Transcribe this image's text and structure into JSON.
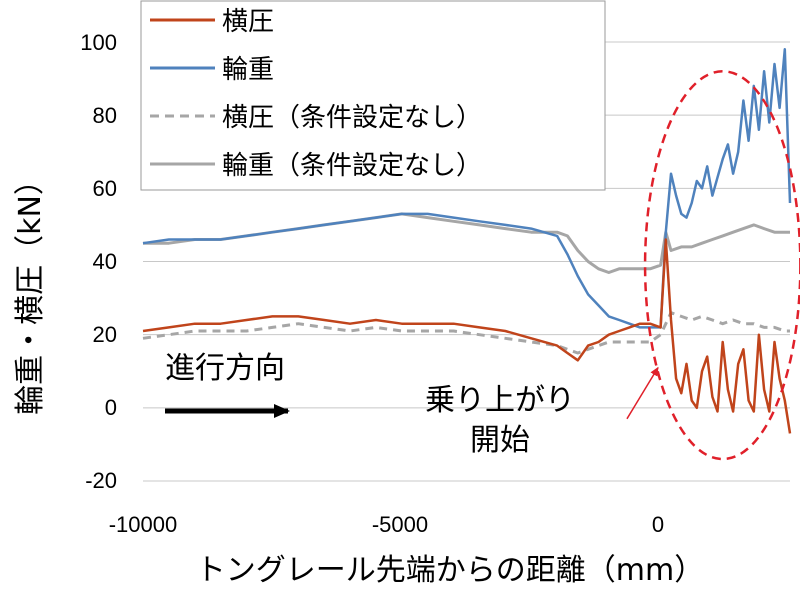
{
  "chart_data": {
    "type": "line",
    "title": "",
    "xlabel": "トングレール先端からの距離（mm）",
    "ylabel": "輪重・横圧（kN）",
    "xlim": [
      -10000,
      2500
    ],
    "ylim": [
      -20,
      100
    ],
    "x_ticks": [
      "-10000",
      "-5000",
      "0"
    ],
    "y_ticks": [
      "-20",
      "0",
      "20",
      "40",
      "60",
      "80",
      "100"
    ],
    "grid": "horizontal",
    "legend_position": "top-left",
    "series": [
      {
        "name": "横圧",
        "color": "#c0441b",
        "style": "solid",
        "x": [
          -10000,
          -9500,
          -9000,
          -8500,
          -8000,
          -7500,
          -7000,
          -6500,
          -6000,
          -5500,
          -5000,
          -4500,
          -4000,
          -3500,
          -3000,
          -2500,
          -2000,
          -1800,
          -1600,
          -1400,
          -1200,
          -1000,
          -800,
          -600,
          -400,
          -200,
          0,
          100,
          200,
          300,
          400,
          500,
          600,
          700,
          800,
          900,
          1000,
          1100,
          1200,
          1300,
          1400,
          1500,
          1600,
          1700,
          1800,
          1900,
          2000,
          2100,
          2200,
          2300,
          2400,
          2500
        ],
        "y": [
          21,
          22,
          23,
          23,
          24,
          25,
          25,
          24,
          23,
          24,
          23,
          23,
          23,
          22,
          21,
          19,
          17,
          15,
          13,
          17,
          18,
          20,
          21,
          22,
          23,
          23,
          22,
          46,
          24,
          8,
          4,
          12,
          2,
          0,
          10,
          14,
          3,
          -1,
          18,
          5,
          -1,
          12,
          16,
          2,
          -1,
          20,
          5,
          -1,
          18,
          8,
          2,
          -7
        ]
      },
      {
        "name": "輪重",
        "color": "#4f82bd",
        "style": "solid",
        "x": [
          -10000,
          -9500,
          -9000,
          -8500,
          -8000,
          -7500,
          -7000,
          -6500,
          -6000,
          -5500,
          -5000,
          -4500,
          -4000,
          -3500,
          -3000,
          -2500,
          -2000,
          -1800,
          -1600,
          -1400,
          -1200,
          -1000,
          -800,
          -600,
          -400,
          -200,
          0,
          100,
          200,
          300,
          400,
          500,
          600,
          700,
          800,
          900,
          1000,
          1100,
          1200,
          1300,
          1400,
          1500,
          1600,
          1700,
          1800,
          1900,
          2000,
          2100,
          2200,
          2300,
          2400,
          2500
        ],
        "y": [
          45,
          46,
          46,
          46,
          47,
          48,
          49,
          50,
          51,
          52,
          53,
          53,
          52,
          51,
          50,
          49,
          47,
          42,
          36,
          31,
          28,
          25,
          24,
          23,
          22,
          22,
          22,
          48,
          64,
          58,
          53,
          52,
          56,
          62,
          60,
          66,
          58,
          63,
          68,
          72,
          64,
          70,
          84,
          73,
          88,
          76,
          92,
          78,
          94,
          82,
          98,
          56
        ]
      },
      {
        "name": "横圧（条件設定なし）",
        "color": "#a6a6a6",
        "style": "dashed",
        "x": [
          -10000,
          -9500,
          -9000,
          -8500,
          -8000,
          -7500,
          -7000,
          -6500,
          -6000,
          -5500,
          -5000,
          -4500,
          -4000,
          -3500,
          -3000,
          -2500,
          -2000,
          -1800,
          -1600,
          -1400,
          -1200,
          -1000,
          -800,
          -600,
          -400,
          -200,
          0,
          200,
          400,
          600,
          800,
          1000,
          1200,
          1400,
          1600,
          1800,
          2000,
          2200,
          2400,
          2500
        ],
        "y": [
          19,
          20,
          21,
          21,
          21,
          22,
          23,
          22,
          21,
          22,
          21,
          21,
          21,
          20,
          19,
          18,
          17,
          16,
          15,
          16,
          17,
          18,
          18,
          18,
          18,
          18,
          20,
          26,
          25,
          24,
          25,
          24,
          23,
          24,
          23,
          23,
          22,
          22,
          21,
          21
        ]
      },
      {
        "name": "輪重（条件設定なし）",
        "color": "#a6a6a6",
        "style": "solid",
        "x": [
          -10000,
          -9500,
          -9000,
          -8500,
          -8000,
          -7500,
          -7000,
          -6500,
          -6000,
          -5500,
          -5000,
          -4500,
          -4000,
          -3500,
          -3000,
          -2500,
          -2000,
          -1800,
          -1600,
          -1400,
          -1200,
          -1000,
          -800,
          -600,
          -400,
          -200,
          0,
          100,
          200,
          400,
          600,
          800,
          1000,
          1200,
          1400,
          1600,
          1800,
          2000,
          2200,
          2400,
          2500
        ],
        "y": [
          45,
          45,
          46,
          46,
          47,
          48,
          49,
          50,
          51,
          52,
          53,
          52,
          51,
          50,
          49,
          48,
          48,
          47,
          43,
          40,
          38,
          37,
          38,
          38,
          38,
          38,
          39,
          48,
          43,
          44,
          44,
          45,
          46,
          47,
          48,
          49,
          50,
          49,
          48,
          48,
          48
        ]
      }
    ],
    "annotations": [
      {
        "text": "進行方向",
        "x": -8100,
        "y": 11
      },
      {
        "text": "乗り上がり",
        "x": -1800,
        "y": 3
      },
      {
        "text": "開始",
        "x": -1800,
        "y": -9
      }
    ],
    "highlight_ellipse": {
      "color": "#e0202a",
      "style": "dashed",
      "center_x": 1200,
      "center_y": 39,
      "radius_x": 1500,
      "radius_y": 53
    },
    "arrow": {
      "from_x": -650,
      "from_y": -3,
      "to_x": -50,
      "to_y": 11,
      "color": "#e0202a"
    }
  }
}
